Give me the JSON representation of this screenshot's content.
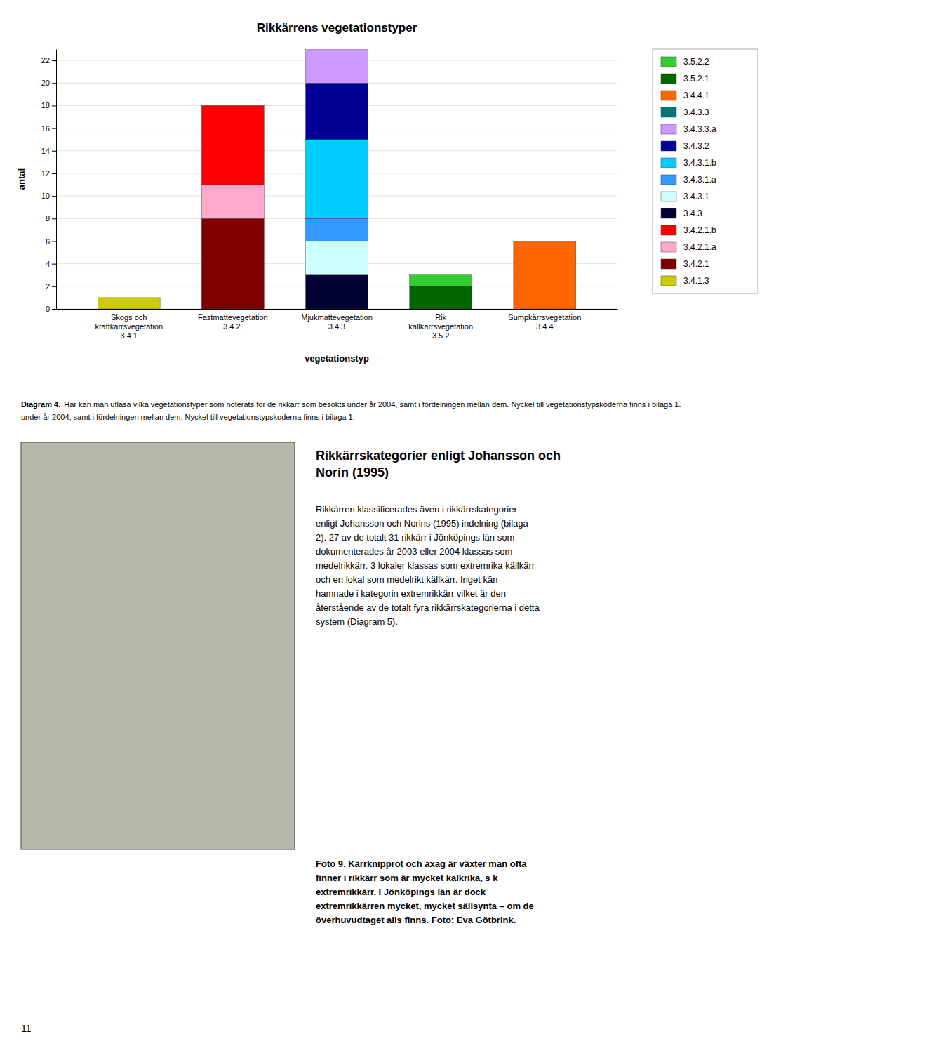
{
  "chart_data": {
    "type": "bar",
    "stacked": true,
    "title": "Rikkärrens vegetationstyper",
    "xlabel": "vegetationstyp",
    "ylabel": "antal",
    "categories": [
      "Skogs och\nkrattkärrsvegetation\n3.4.1",
      "Fastmattevegetation\n3.4.2.",
      "Mjukmattevegetation\n3.4.3",
      "Rik\nkällkärrsvegetation\n3.5.2",
      "Sumpkärrsvegetation\n3.4.4"
    ],
    "series": [
      {
        "name": "3.4.1.3",
        "color": "#cccc00",
        "values": [
          1,
          0,
          0,
          0,
          0
        ]
      },
      {
        "name": "3.4.2.1",
        "color": "#800000",
        "values": [
          0,
          8,
          0,
          0,
          0
        ]
      },
      {
        "name": "3.4.2.1.a",
        "color": "#ffaacc",
        "values": [
          0,
          3,
          0,
          0,
          0
        ]
      },
      {
        "name": "3.4.2.1.b",
        "color": "#ff0000",
        "values": [
          0,
          7,
          0,
          0,
          0
        ]
      },
      {
        "name": "3.4.3",
        "color": "#000033",
        "values": [
          0,
          0,
          3,
          0,
          0
        ]
      },
      {
        "name": "3.4.3.1",
        "color": "#ccffff",
        "values": [
          0,
          0,
          3,
          0,
          0
        ]
      },
      {
        "name": "3.4.3.1.a",
        "color": "#3399ff",
        "values": [
          0,
          0,
          2,
          0,
          0
        ]
      },
      {
        "name": "3.4.3.1.b",
        "color": "#00ccff",
        "values": [
          0,
          0,
          7,
          0,
          0
        ]
      },
      {
        "name": "3.4.3.2",
        "color": "#000099",
        "values": [
          0,
          0,
          5,
          0,
          0
        ]
      },
      {
        "name": "3.4.3.3.a",
        "color": "#cc99ff",
        "values": [
          0,
          0,
          3,
          0,
          0
        ]
      },
      {
        "name": "3.4.3.3",
        "color": "#007777",
        "values": [
          0,
          0,
          0,
          0,
          0
        ]
      },
      {
        "name": "3.4.4.1",
        "color": "#ff6600",
        "values": [
          0,
          0,
          0,
          0,
          6
        ]
      },
      {
        "name": "3.5.2.1",
        "color": "#006600",
        "values": [
          0,
          0,
          0,
          2,
          0
        ]
      },
      {
        "name": "3.5.2.2",
        "color": "#33cc33",
        "values": [
          0,
          0,
          0,
          1,
          0
        ]
      }
    ],
    "ylim": [
      0,
      23
    ],
    "yticks": [
      0,
      2,
      4,
      6,
      8,
      10,
      12,
      14,
      16,
      18,
      20,
      22
    ],
    "grid": true,
    "legend": "right"
  },
  "page": {
    "diagram_caption_bold": "Diagram 4.",
    "diagram_caption_rest": " Här kan man utläsa vilka vegetationstyper som noterats för de rikkärr som besökts under år 2004, samt i fördelningen mellan dem. Nyckel till vegetationstypskoderna finns i bilaga 1.",
    "diagram_caption_line2": "under år 2004, samt i fördelningen mellan dem. Nyckel till vegetationstypskoderna finns i bilaga 1.",
    "section_heading_lines": [
      "Rikkärrskategorier enligt Johansson och",
      "Norin (1995)"
    ],
    "body_text_lines": [
      "Rikkärren klassificerades även i rikkärrskategorier",
      "enligt Johansson och Norins (1995) indelning (bilaga",
      "2). 27 av de totalt 31 rikkärr i Jönköpings län som",
      "dokumenterades år 2003 eller 2004 klassas som",
      "medelrikkärr. 3 lokaler klassas som extremrika källkärr",
      "och en lokal som medelrikt källkärr. Inget kärr",
      "hamnade i kategorin extremrikkärr vilket är den",
      "återstående av de totalt fyra rikkärrskategorierna i detta",
      "system (Diagram 5)."
    ],
    "photo_caption_lines": [
      "Foto 9. Kärrknipprot och axag är växter man ofta",
      "finner i rikkärr som är mycket kalkrika, s k",
      "extremrikkärr. I Jönköpings län är dock",
      "extremrikkärren mycket, mycket sällsynta – om de",
      "överhuvudtaget alls finns. Foto: Eva Götbrink."
    ],
    "page_number": "11"
  }
}
